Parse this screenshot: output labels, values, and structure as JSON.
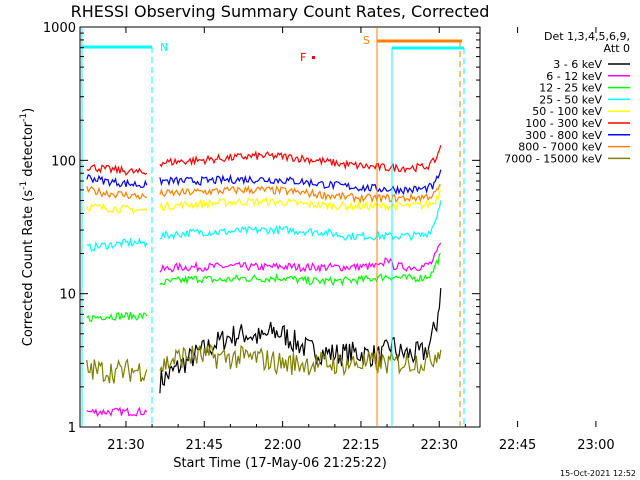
{
  "chart_data": {
    "type": "line",
    "title": "RHESSI Observing Summary Count Rates, Corrected",
    "xlabel": "Start Time (17-May-06 21:25:22)",
    "ylabel_main": "Corrected Count Rate (s",
    "ylabel_exp1": "-1",
    "ylabel_mid": " detector",
    "ylabel_exp2": "-1",
    "ylabel_end": ")",
    "yscale": "log",
    "ylim": [
      1,
      1000
    ],
    "xlim_minutes": [
      21.2,
      97.8
    ],
    "x_ticks": [
      {
        "label": "21:30",
        "min": 30
      },
      {
        "label": "21:45",
        "min": 45
      },
      {
        "label": "22:00",
        "min": 60
      },
      {
        "label": "22:15",
        "min": 75
      },
      {
        "label": "22:30",
        "min": 90
      },
      {
        "label": "22:45",
        "min": 105
      },
      {
        "label": "23:00",
        "min": 120
      }
    ],
    "y_ticks": [
      {
        "label": "1",
        "v": 1
      },
      {
        "label": "10",
        "v": 10
      },
      {
        "label": "100",
        "v": 100
      },
      {
        "label": "1000",
        "v": 1000
      }
    ],
    "legend_header": [
      "Det 1,3,4,5,6,9,",
      "Att 0"
    ],
    "legend_position": "top-right",
    "timestamp": "15-Oct-2021 12:52",
    "flag_labels": [
      {
        "text": "N",
        "color": "#00ffff"
      },
      {
        "text": "F",
        "color": "#ff0000"
      },
      {
        "text": "S",
        "color": "#ff8000"
      }
    ],
    "series": [
      {
        "name": "3 - 6 keV",
        "color": "#000000",
        "segments": [
          [
            [
              36.5,
              2.2
            ],
            [
              39,
              2.6
            ],
            [
              41,
              3.0
            ],
            [
              44,
              3.6
            ],
            [
              47,
              4.2
            ],
            [
              50,
              4.8
            ],
            [
              53,
              5.0
            ],
            [
              56,
              4.6
            ],
            [
              58,
              5.2
            ],
            [
              60,
              5.0
            ],
            [
              62,
              4.4
            ],
            [
              65,
              3.8
            ],
            [
              68,
              3.6
            ],
            [
              71,
              3.5
            ],
            [
              74,
              3.6
            ],
            [
              76,
              3.5
            ],
            [
              79,
              3.4
            ],
            [
              81,
              4.2
            ],
            [
              82,
              3.6
            ],
            [
              85,
              3.5
            ],
            [
              87,
              3.6
            ],
            [
              88,
              4.0
            ],
            [
              89.5,
              6.0
            ],
            [
              90.3,
              11.0
            ]
          ]
        ]
      },
      {
        "name": "6 - 12 keV",
        "color": "#ff00ff",
        "segments": [
          [
            [
              22.5,
              1.3
            ],
            [
              28,
              1.3
            ],
            [
              34,
              1.3
            ]
          ],
          [
            [
              36.5,
              15.0
            ],
            [
              40,
              15.8
            ],
            [
              44,
              15.8
            ],
            [
              48,
              16.0
            ],
            [
              52,
              16.0
            ],
            [
              56,
              15.8
            ],
            [
              60,
              16.0
            ],
            [
              64,
              15.8
            ],
            [
              68,
              15.8
            ],
            [
              72,
              15.8
            ],
            [
              76,
              16.0
            ],
            [
              79,
              16.0
            ],
            [
              80,
              19.0
            ],
            [
              81,
              16.2
            ],
            [
              84,
              15.8
            ],
            [
              87,
              16.0
            ],
            [
              88.5,
              17.0
            ],
            [
              89.5,
              20.0
            ],
            [
              90.3,
              24.0
            ]
          ]
        ]
      },
      {
        "name": "12 - 25 keV",
        "color": "#00ff00",
        "segments": [
          [
            [
              22.5,
              6.5
            ],
            [
              26,
              6.8
            ],
            [
              30,
              6.8
            ],
            [
              34,
              6.8
            ]
          ],
          [
            [
              36.5,
              12.0
            ],
            [
              40,
              12.5
            ],
            [
              44,
              13.0
            ],
            [
              48,
              12.6
            ],
            [
              52,
              13.0
            ],
            [
              56,
              13.0
            ],
            [
              60,
              13.2
            ],
            [
              64,
              12.5
            ],
            [
              68,
              12.4
            ],
            [
              72,
              12.5
            ],
            [
              76,
              12.8
            ],
            [
              80,
              13.5
            ],
            [
              84,
              13.0
            ],
            [
              87,
              13.2
            ],
            [
              88.5,
              14.0
            ],
            [
              89.5,
              17.0
            ],
            [
              90.3,
              20.0
            ]
          ]
        ]
      },
      {
        "name": "25 - 50 keV",
        "color": "#00ffff",
        "segments": [
          [
            [
              22.5,
              22.0
            ],
            [
              26,
              23.0
            ],
            [
              30,
              24.0
            ],
            [
              34,
              24.0
            ]
          ],
          [
            [
              36.5,
              27.0
            ],
            [
              40,
              28.0
            ],
            [
              44,
              29.0
            ],
            [
              48,
              29.0
            ],
            [
              52,
              29.5
            ],
            [
              56,
              30.0
            ],
            [
              60,
              30.0
            ],
            [
              64,
              29.5
            ],
            [
              68,
              29.0
            ],
            [
              72,
              27.0
            ],
            [
              76,
              27.0
            ],
            [
              80,
              27.0
            ],
            [
              84,
              27.0
            ],
            [
              87,
              27.5
            ],
            [
              88,
              29.0
            ],
            [
              89,
              33.0
            ],
            [
              90.3,
              50.0
            ]
          ]
        ]
      },
      {
        "name": "50 - 100 keV",
        "color": "#ffff00",
        "segments": [
          [
            [
              22.5,
              45.0
            ],
            [
              26,
              44.0
            ],
            [
              30,
              43.0
            ],
            [
              34,
              42.0
            ]
          ],
          [
            [
              36.5,
              45.0
            ],
            [
              40,
              46.0
            ],
            [
              44,
              47.0
            ],
            [
              48,
              48.0
            ],
            [
              52,
              49.0
            ],
            [
              56,
              49.0
            ],
            [
              60,
              48.5
            ],
            [
              64,
              47.0
            ],
            [
              68,
              46.0
            ],
            [
              72,
              45.5
            ],
            [
              76,
              45.0
            ],
            [
              80,
              45.5
            ],
            [
              84,
              45.5
            ],
            [
              87,
              46.0
            ],
            [
              89,
              48.0
            ],
            [
              90.3,
              60.0
            ]
          ]
        ]
      },
      {
        "name": "100 - 300 keV",
        "color": "#ff0000",
        "segments": [
          [
            [
              22.5,
              90.0
            ],
            [
              26,
              86.0
            ],
            [
              30,
              83.0
            ],
            [
              34,
              80.0
            ]
          ],
          [
            [
              36.5,
              96.0
            ],
            [
              40,
              98.0
            ],
            [
              44,
              100.0
            ],
            [
              48,
              103.0
            ],
            [
              52,
              106.0
            ],
            [
              56,
              108.0
            ],
            [
              60,
              107.0
            ],
            [
              64,
              103.0
            ],
            [
              68,
              98.0
            ],
            [
              72,
              93.0
            ],
            [
              76,
              90.0
            ],
            [
              80,
              88.0
            ],
            [
              84,
              88.0
            ],
            [
              87,
              89.0
            ],
            [
              88.5,
              93.0
            ],
            [
              89.5,
              105.0
            ],
            [
              90.3,
              130.0
            ]
          ]
        ]
      },
      {
        "name": "300 - 800 keV",
        "color": "#0000ff",
        "segments": [
          [
            [
              22.5,
              75.0
            ],
            [
              26,
              70.0
            ],
            [
              30,
              67.0
            ],
            [
              34,
              65.0
            ]
          ],
          [
            [
              36.5,
              70.0
            ],
            [
              40,
              70.0
            ],
            [
              44,
              70.0
            ],
            [
              48,
              71.0
            ],
            [
              52,
              72.0
            ],
            [
              56,
              72.0
            ],
            [
              60,
              71.0
            ],
            [
              64,
              69.0
            ],
            [
              68,
              66.0
            ],
            [
              72,
              64.0
            ],
            [
              76,
              62.0
            ],
            [
              80,
              61.0
            ],
            [
              84,
              60.0
            ],
            [
              87,
              61.0
            ],
            [
              89,
              64.0
            ],
            [
              90.3,
              85.0
            ]
          ]
        ]
      },
      {
        "name": "800 - 7000 keV",
        "color": "#ff8000",
        "segments": [
          [
            [
              22.5,
              60.0
            ],
            [
              26,
              57.0
            ],
            [
              30,
              55.0
            ],
            [
              34,
              53.0
            ]
          ],
          [
            [
              36.5,
              56.0
            ],
            [
              40,
              57.0
            ],
            [
              44,
              58.0
            ],
            [
              48,
              59.0
            ],
            [
              52,
              60.0
            ],
            [
              56,
              60.0
            ],
            [
              60,
              59.0
            ],
            [
              64,
              57.0
            ],
            [
              68,
              55.0
            ],
            [
              72,
              53.0
            ],
            [
              76,
              52.0
            ],
            [
              80,
              52.0
            ],
            [
              84,
              52.0
            ],
            [
              87,
              53.0
            ],
            [
              89,
              55.0
            ],
            [
              90.3,
              65.0
            ]
          ]
        ]
      },
      {
        "name": "7000 - 15000 keV",
        "color": "#808000",
        "segments": [
          [
            [
              22.5,
              2.7
            ],
            [
              28,
              2.6
            ],
            [
              34,
              2.7
            ]
          ],
          [
            [
              36.5,
              2.8
            ],
            [
              39,
              3.2
            ],
            [
              41,
              3.4
            ],
            [
              45,
              3.4
            ],
            [
              50,
              3.3
            ],
            [
              55,
              3.3
            ],
            [
              60,
              3.0
            ],
            [
              65,
              3.0
            ],
            [
              70,
              3.0
            ],
            [
              75,
              3.0
            ],
            [
              80,
              3.0
            ],
            [
              85,
              3.1
            ],
            [
              88,
              3.1
            ],
            [
              89.5,
              3.6
            ],
            [
              90.3,
              3.8
            ]
          ]
        ]
      }
    ]
  }
}
